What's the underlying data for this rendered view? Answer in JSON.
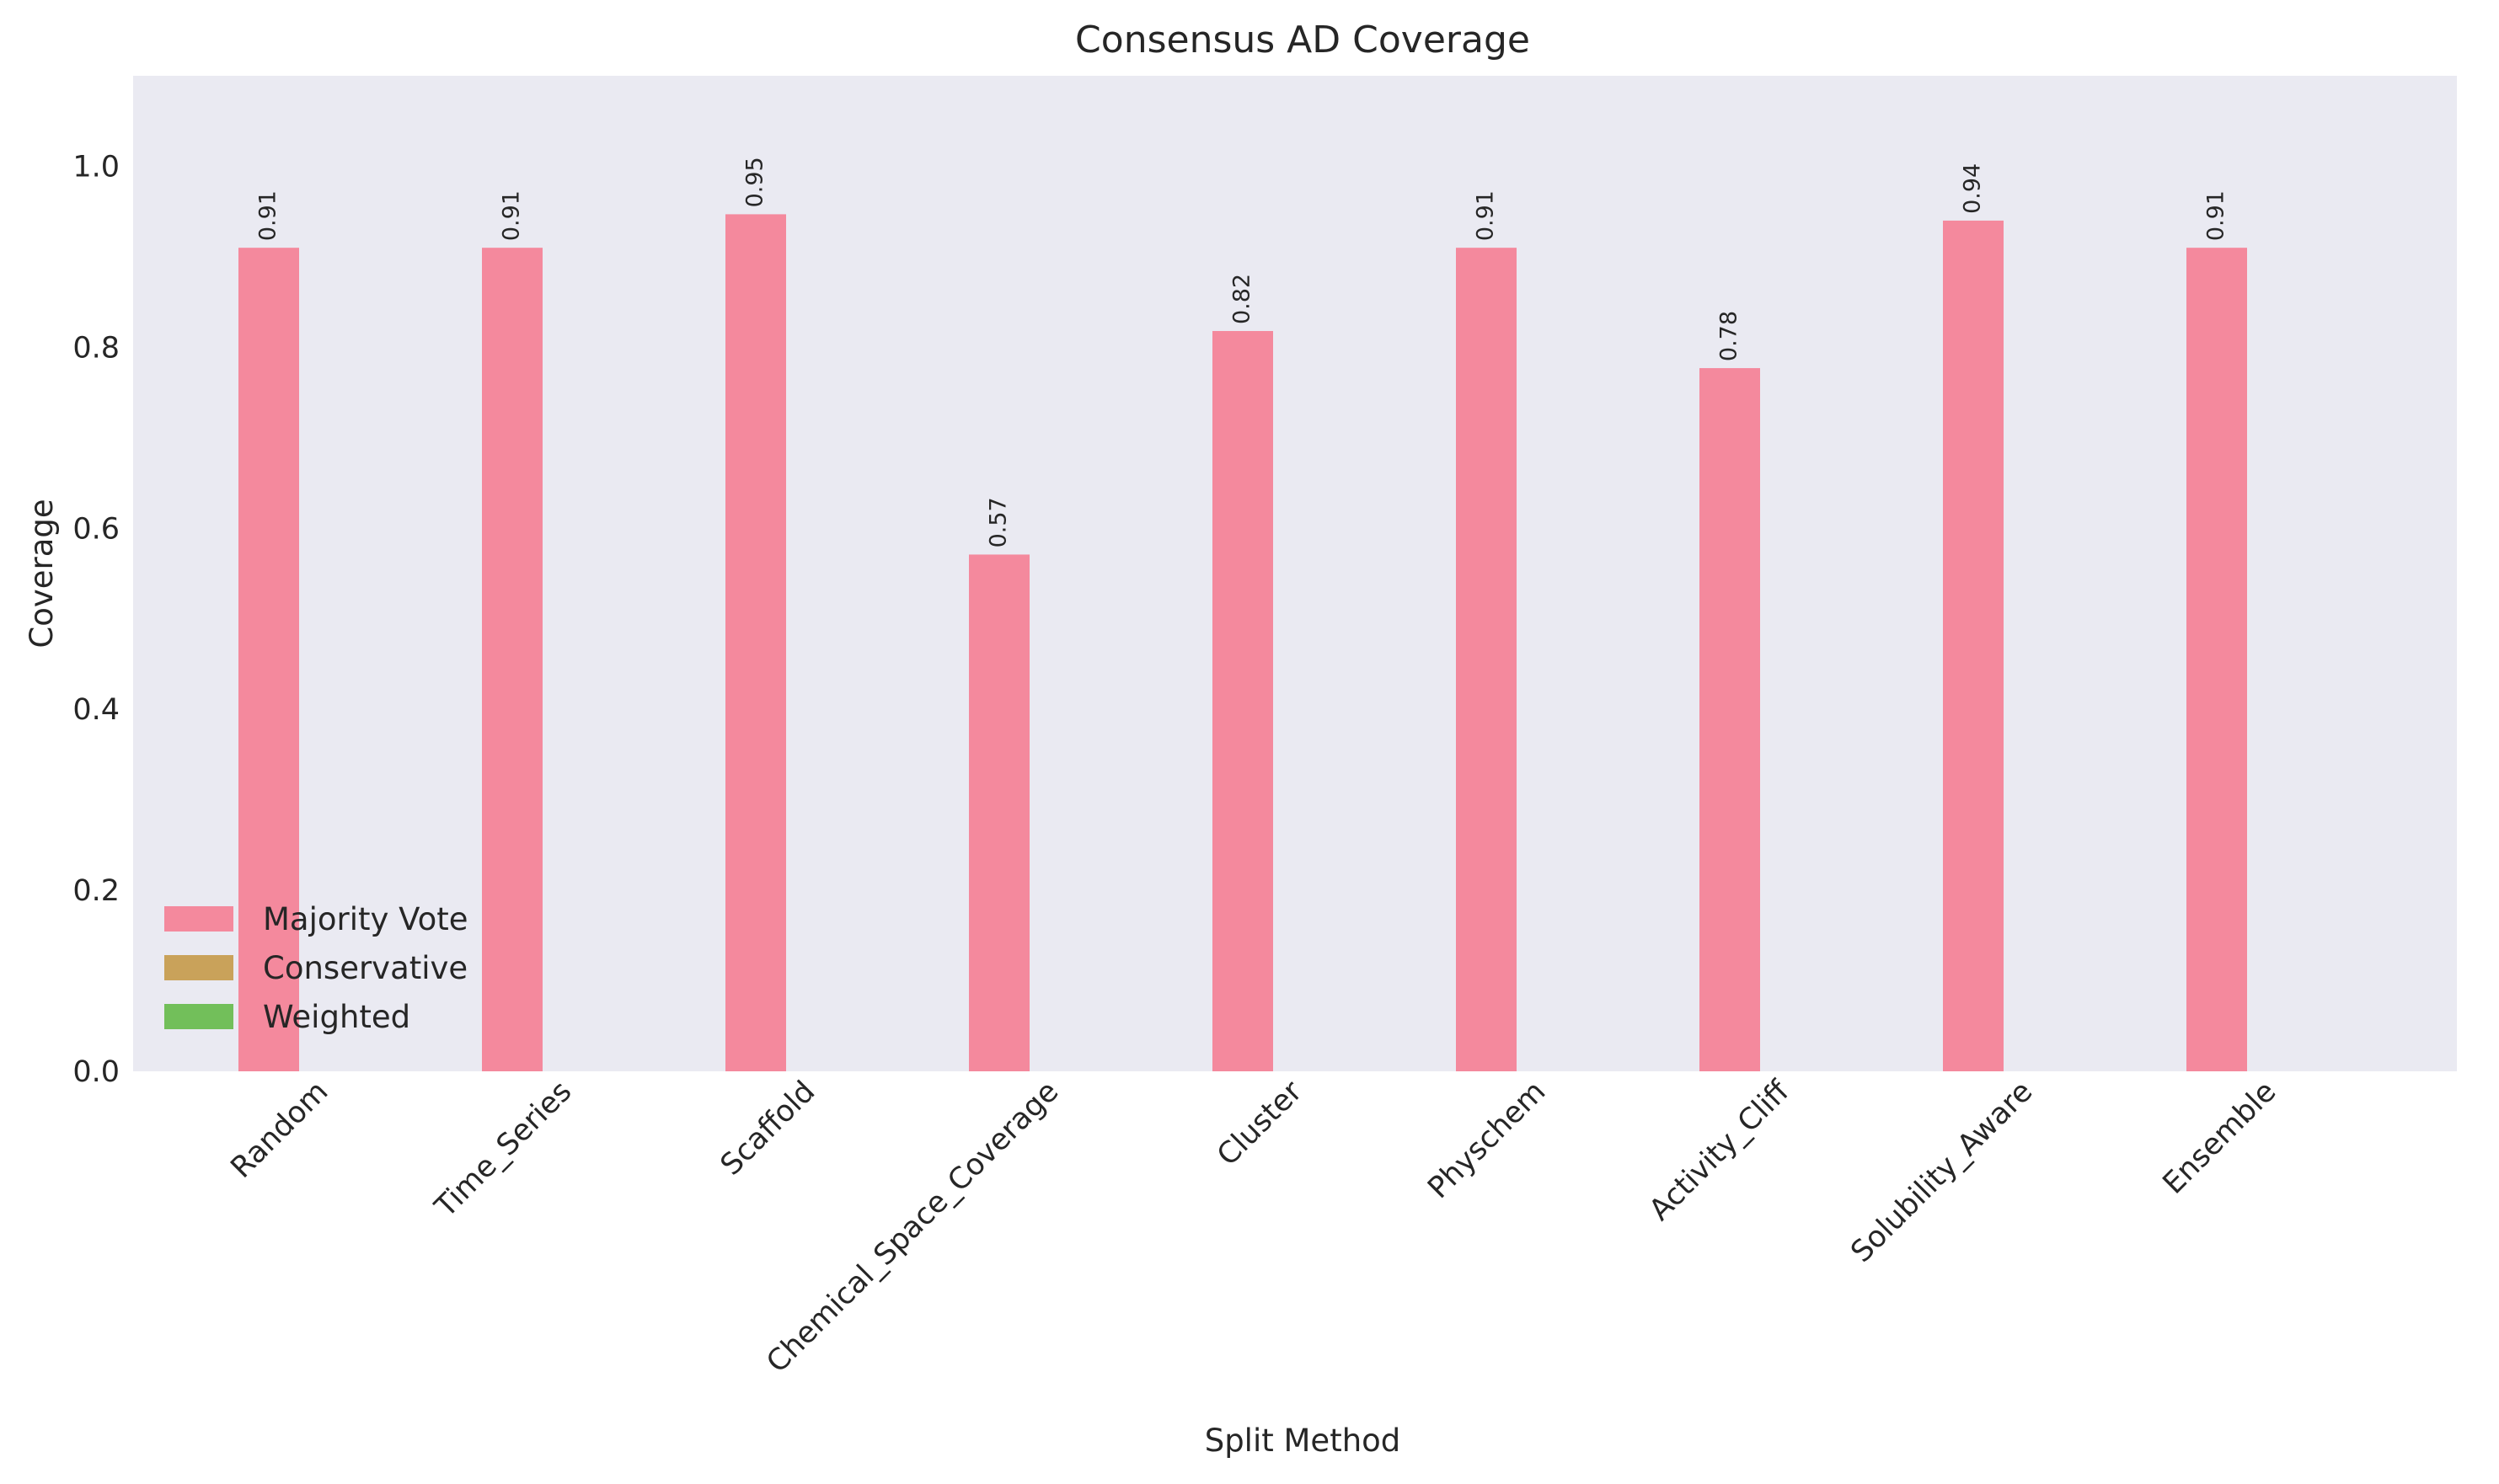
{
  "chart_data": {
    "type": "bar",
    "title": "Consensus AD Coverage",
    "xlabel": "Split Method",
    "ylabel": "Coverage",
    "ylim": [
      0,
      1.1
    ],
    "yticks": [
      0.0,
      0.2,
      0.4,
      0.6,
      0.8,
      1.0
    ],
    "grid": false,
    "legend_position": "lower-left",
    "categories": [
      "Random",
      "Time_Series",
      "Scaffold",
      "Chemical_Space_Coverage",
      "Cluster",
      "Physchem",
      "Activity_Cliff",
      "Solubility_Aware",
      "Ensemble"
    ],
    "series": [
      {
        "name": "Majority Vote",
        "color": "#f4899d",
        "values": [
          0.91,
          0.91,
          0.947,
          0.571,
          0.818,
          0.91,
          0.777,
          0.94,
          0.91
        ],
        "labels": [
          "0.91",
          "0.91",
          "0.95",
          "0.57",
          "0.82",
          "0.91",
          "0.78",
          "0.94",
          "0.91"
        ]
      },
      {
        "name": "Conservative",
        "color": "#c9a25a",
        "values": [
          0,
          0,
          0,
          0,
          0,
          0,
          0,
          0,
          0
        ],
        "labels": []
      },
      {
        "name": "Weighted",
        "color": "#72bf5a",
        "values": [
          0,
          0,
          0,
          0,
          0,
          0,
          0,
          0,
          0
        ],
        "labels": []
      }
    ],
    "background_color": "#eaeaf2"
  }
}
